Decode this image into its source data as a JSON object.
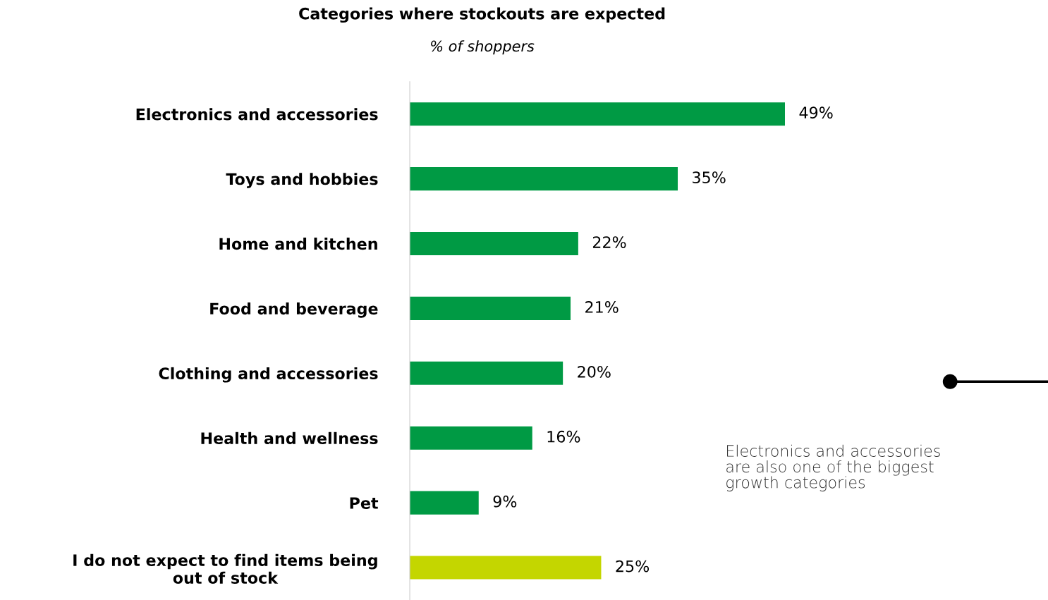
{
  "chart_data": {
    "type": "bar",
    "orientation": "horizontal",
    "title": "Categories where stockouts are expected",
    "subtitle": "% of shoppers",
    "categories": [
      "Electronics and accessories",
      "Toys and hobbies",
      "Home and kitchen",
      "Food and beverage",
      "Clothing and accessories",
      "Health and wellness",
      "Pet",
      "I do not expect to find items being\nout of stock"
    ],
    "values": [
      49,
      35,
      22,
      21,
      20,
      16,
      9,
      25
    ],
    "colors": [
      "#009a44",
      "#009a44",
      "#009a44",
      "#009a44",
      "#009a44",
      "#009a44",
      "#009a44",
      "#c4d600"
    ],
    "value_labels": [
      "49%",
      "35%",
      "22%",
      "21%",
      "20%",
      "16%",
      "9%",
      "25%"
    ],
    "tick_labels": "y",
    "grid": false,
    "legend": false,
    "annotations": [
      "Electronics and accessories\nare also one of the biggest\ngrowth categories"
    ]
  }
}
